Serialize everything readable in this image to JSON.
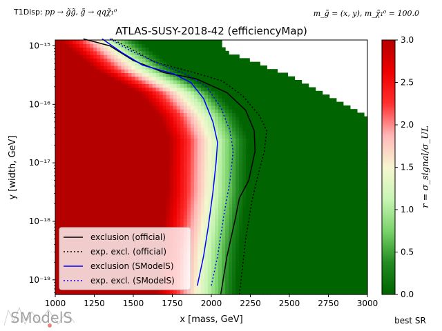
{
  "header": {
    "process_prefix": "T1Disp: ",
    "process_formula": "pp → g̃g̃, g̃ → qqχ̃₁⁰",
    "mass_assumption": "m_g̃ = (x, y), m_χ̃₁⁰ = 100.0"
  },
  "chart_data": {
    "type": "heatmap",
    "title": "ATLAS-SUSY-2018-42 (efficiencyMap)",
    "xlabel": "x [mass, GeV]",
    "ylabel": "y [width, GeV]",
    "xlim": [
      1000,
      3000
    ],
    "ylim_log10": [
      -19.25,
      -14.9
    ],
    "x_ticks": [
      1000,
      1250,
      1500,
      1750,
      2000,
      2250,
      2500,
      2750,
      3000
    ],
    "x_tick_labels": [
      "1000",
      "1250",
      "1500",
      "1750",
      "2000",
      "2250",
      "2500",
      "2750",
      "3000"
    ],
    "y_ticks_log10": [
      -15,
      -16,
      -17,
      -18,
      -19
    ],
    "y_tick_labels": [
      "10⁻¹⁵",
      "10⁻¹⁶",
      "10⁻¹⁷",
      "10⁻¹⁸",
      "10⁻¹⁹"
    ],
    "colorbar": {
      "label": "r = σ_signal/σ_UL",
      "range": [
        0.0,
        3.0
      ],
      "ticks": [
        0.0,
        0.5,
        1.0,
        1.5,
        2.0,
        2.5,
        3.0
      ],
      "tick_labels": [
        "0.0",
        "0.5",
        "1.0",
        "1.5",
        "2.0",
        "2.5",
        "3.0"
      ],
      "colors": [
        "#006400",
        "#228b22",
        "#7bd36b",
        "#c8f5b4",
        "#f6f6d0",
        "#ffb7b7",
        "#ff3030",
        "#ee0000",
        "#b50000"
      ]
    },
    "heatmap_model": {
      "description": "r value approx. transition from >3 (dark red) to ~0 (dark green) along a boundary in mass vs log10(width)",
      "r1_boundary": [
        {
          "log10_width": -14.9,
          "mass": 1370
        },
        {
          "log10_width": -15.4,
          "mass": 1600
        },
        {
          "log10_width": -15.8,
          "mass": 1880
        },
        {
          "log10_width": -16.2,
          "mass": 2010
        },
        {
          "log10_width": -16.6,
          "mass": 2070
        },
        {
          "log10_width": -17.5,
          "mass": 2060
        },
        {
          "log10_width": -18.5,
          "mass": 2010
        },
        {
          "log10_width": -19.25,
          "mass": 1990
        }
      ],
      "data_upper_limit": [
        {
          "mass": 1000,
          "log10_width": -14.9
        },
        {
          "mass": 2050,
          "log10_width": -14.9
        },
        {
          "mass": 2100,
          "log10_width": -15.1
        },
        {
          "mass": 2500,
          "log10_width": -15.5
        },
        {
          "mass": 3000,
          "log10_width": -16.2
        }
      ],
      "r_max": 3.0,
      "transition_width_gev": 170
    },
    "series": [
      {
        "name": "exclusion (official)",
        "color": "#000000",
        "style": "solid",
        "points": [
          {
            "x": 1180,
            "y": -14.88
          },
          {
            "x": 1350,
            "y": -15.0
          },
          {
            "x": 1500,
            "y": -15.25
          },
          {
            "x": 1700,
            "y": -15.46
          },
          {
            "x": 1900,
            "y": -15.56
          },
          {
            "x": 2100,
            "y": -15.8
          },
          {
            "x": 2220,
            "y": -16.1
          },
          {
            "x": 2275,
            "y": -16.45
          },
          {
            "x": 2280,
            "y": -16.8
          },
          {
            "x": 2240,
            "y": -17.3
          },
          {
            "x": 2180,
            "y": -17.6
          },
          {
            "x": 2150,
            "y": -18.0
          },
          {
            "x": 2100,
            "y": -18.6
          },
          {
            "x": 2060,
            "y": -19.25
          }
        ]
      },
      {
        "name": "exp. excl. (official)",
        "color": "#000000",
        "style": "dotted",
        "points": [
          {
            "x": 1360,
            "y": -14.88
          },
          {
            "x": 1450,
            "y": -15.0
          },
          {
            "x": 1640,
            "y": -15.28
          },
          {
            "x": 1880,
            "y": -15.45
          },
          {
            "x": 2070,
            "y": -15.6
          },
          {
            "x": 2200,
            "y": -15.85
          },
          {
            "x": 2310,
            "y": -16.2
          },
          {
            "x": 2355,
            "y": -16.45
          },
          {
            "x": 2340,
            "y": -16.8
          },
          {
            "x": 2300,
            "y": -17.2
          },
          {
            "x": 2260,
            "y": -17.65
          },
          {
            "x": 2220,
            "y": -18.3
          },
          {
            "x": 2180,
            "y": -19.25
          }
        ]
      },
      {
        "name": "exclusion (SModelS)",
        "color": "#0000ff",
        "style": "solid",
        "points": [
          {
            "x": 1300,
            "y": -14.88
          },
          {
            "x": 1430,
            "y": -15.12
          },
          {
            "x": 1560,
            "y": -15.33
          },
          {
            "x": 1760,
            "y": -15.48
          },
          {
            "x": 1870,
            "y": -15.63
          },
          {
            "x": 1950,
            "y": -15.9
          },
          {
            "x": 2010,
            "y": -16.3
          },
          {
            "x": 2040,
            "y": -16.65
          },
          {
            "x": 2030,
            "y": -17.0
          },
          {
            "x": 2010,
            "y": -17.5
          },
          {
            "x": 1980,
            "y": -18.1
          },
          {
            "x": 1950,
            "y": -18.6
          },
          {
            "x": 1910,
            "y": -19.1
          }
        ]
      },
      {
        "name": "exp. excl. (SModelS)",
        "color": "#0000ff",
        "style": "dotted",
        "points": [
          {
            "x": 1350,
            "y": -14.88
          },
          {
            "x": 1480,
            "y": -15.08
          },
          {
            "x": 1660,
            "y": -15.3
          },
          {
            "x": 1850,
            "y": -15.5
          },
          {
            "x": 1970,
            "y": -15.7
          },
          {
            "x": 2060,
            "y": -16.05
          },
          {
            "x": 2120,
            "y": -16.45
          },
          {
            "x": 2140,
            "y": -16.8
          },
          {
            "x": 2120,
            "y": -17.3
          },
          {
            "x": 2080,
            "y": -17.9
          },
          {
            "x": 2040,
            "y": -18.6
          },
          {
            "x": 2000,
            "y": -19.1
          }
        ]
      }
    ],
    "legend": {
      "placement": "bottom-left",
      "entries": [
        "exclusion (official)",
        "exp. excl. (official)",
        "exclusion (SModelS)",
        "exp. excl. (SModelS)"
      ]
    }
  },
  "footer": {
    "best_sr_label": "best SR",
    "logo_text": "SModelS"
  }
}
